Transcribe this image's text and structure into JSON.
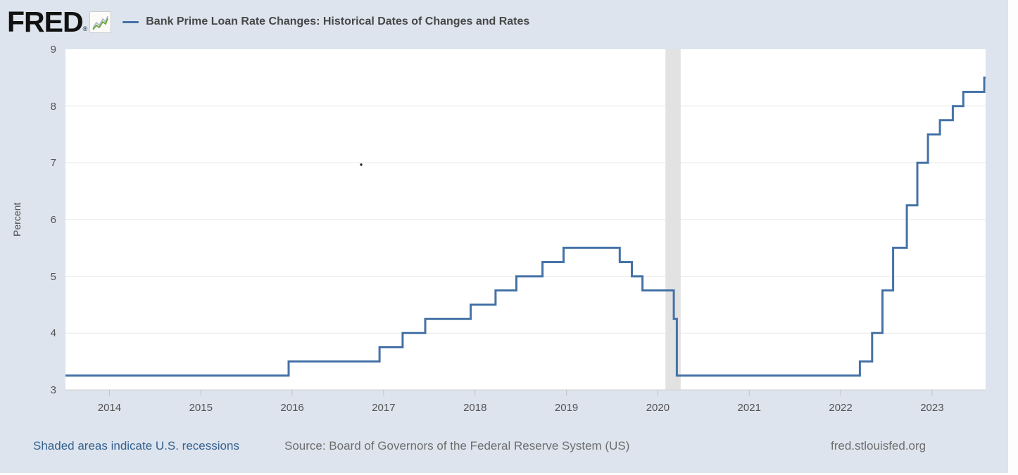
{
  "header": {
    "logo_text": "FRED",
    "registered_mark": "®"
  },
  "footer": {
    "recession_note": "Shaded areas indicate U.S. recessions",
    "source": "Source: Board of Governors of the Federal Reserve System (US)",
    "site": "fred.stlouisfed.org"
  },
  "colors": {
    "background": "#dde4ee",
    "line": "#4572a7",
    "recession_band": "#e2e2e2",
    "gridline": "#e6e6e6",
    "axis_line": "#d0d0d0",
    "tick": "#c0c0c0",
    "link": "#36618e",
    "muted_text": "#6e6e6e"
  },
  "icons": {
    "logo_chart_icon": "line-chart-sparkline"
  },
  "chart_data": {
    "type": "line",
    "step": true,
    "title": "Bank Prime Loan Rate Changes: Historical Dates of Changes and Rates",
    "xlabel": "",
    "ylabel": "Percent",
    "ylim": [
      3,
      9
    ],
    "y_ticks": [
      3,
      4,
      5,
      6,
      7,
      8,
      9
    ],
    "x_ticks": [
      2014,
      2015,
      2016,
      2017,
      2018,
      2019,
      2020,
      2021,
      2022,
      2023
    ],
    "x_range": [
      "2013-07-08",
      "2023-08-02"
    ],
    "grid": "horizontal",
    "legend_position": "top",
    "recessions": [
      {
        "start": "2020-02-01",
        "end": "2020-04-01"
      }
    ],
    "series": [
      {
        "name": "Bank Prime Loan Rate",
        "start_value": 3.25,
        "points": [
          {
            "date": "2015-12-17",
            "value": 3.5
          },
          {
            "date": "2016-12-15",
            "value": 3.75
          },
          {
            "date": "2017-03-16",
            "value": 4.0
          },
          {
            "date": "2017-06-15",
            "value": 4.25
          },
          {
            "date": "2017-12-14",
            "value": 4.5
          },
          {
            "date": "2018-03-22",
            "value": 4.75
          },
          {
            "date": "2018-06-14",
            "value": 5.0
          },
          {
            "date": "2018-09-27",
            "value": 5.25
          },
          {
            "date": "2018-12-20",
            "value": 5.5
          },
          {
            "date": "2019-08-01",
            "value": 5.25
          },
          {
            "date": "2019-09-19",
            "value": 5.0
          },
          {
            "date": "2019-10-31",
            "value": 4.75
          },
          {
            "date": "2020-03-04",
            "value": 4.25
          },
          {
            "date": "2020-03-16",
            "value": 3.25
          },
          {
            "date": "2022-03-17",
            "value": 3.5
          },
          {
            "date": "2022-05-05",
            "value": 4.0
          },
          {
            "date": "2022-06-16",
            "value": 4.75
          },
          {
            "date": "2022-07-28",
            "value": 5.5
          },
          {
            "date": "2022-09-22",
            "value": 6.25
          },
          {
            "date": "2022-11-03",
            "value": 7.0
          },
          {
            "date": "2022-12-15",
            "value": 7.5
          },
          {
            "date": "2023-02-02",
            "value": 7.75
          },
          {
            "date": "2023-03-23",
            "value": 8.0
          },
          {
            "date": "2023-05-04",
            "value": 8.25
          },
          {
            "date": "2023-07-27",
            "value": 8.5
          }
        ]
      }
    ]
  }
}
